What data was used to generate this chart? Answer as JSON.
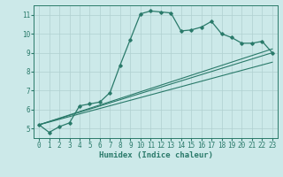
{
  "xlabel": "Humidex (Indice chaleur)",
  "bg_color": "#cce9e9",
  "grid_color": "#b0d0d0",
  "line_color": "#2a7a6a",
  "xlim": [
    -0.5,
    23.5
  ],
  "ylim": [
    4.5,
    11.5
  ],
  "xticks": [
    0,
    1,
    2,
    3,
    4,
    5,
    6,
    7,
    8,
    9,
    10,
    11,
    12,
    13,
    14,
    15,
    16,
    17,
    18,
    19,
    20,
    21,
    22,
    23
  ],
  "yticks": [
    5,
    6,
    7,
    8,
    9,
    10,
    11
  ],
  "series": {
    "main": {
      "x": [
        0,
        1,
        2,
        3,
        4,
        5,
        6,
        7,
        8,
        9,
        10,
        11,
        12,
        13,
        14,
        15,
        16,
        17,
        18,
        19,
        20,
        21,
        22,
        23
      ],
      "y": [
        5.2,
        4.8,
        5.1,
        5.3,
        6.2,
        6.3,
        6.4,
        6.9,
        8.35,
        9.7,
        11.05,
        11.2,
        11.15,
        11.1,
        10.15,
        10.2,
        10.35,
        10.65,
        10.0,
        9.8,
        9.5,
        9.5,
        9.6,
        9.0
      ]
    },
    "line1": {
      "x": [
        0,
        23
      ],
      "y": [
        5.2,
        9.0
      ]
    },
    "line2": {
      "x": [
        0,
        23
      ],
      "y": [
        5.2,
        8.5
      ]
    },
    "line3": {
      "x": [
        0,
        23
      ],
      "y": [
        5.2,
        9.2
      ]
    }
  }
}
